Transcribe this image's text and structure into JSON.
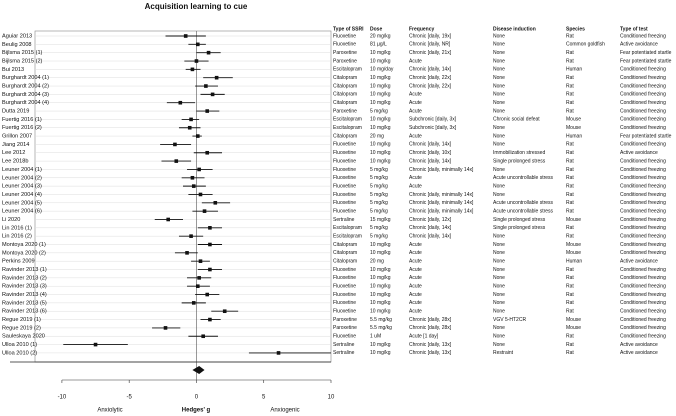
{
  "chart_data": {
    "type": "forest",
    "title": "Acquisition learning to cue",
    "x_label": "Hedges' g",
    "x_left_label": "Anxiolytic",
    "x_right_label": "Anxiogenic",
    "xlim": [
      -12,
      10
    ],
    "xticks": [
      -10,
      -5,
      0,
      5,
      10
    ],
    "color": "#111111",
    "categories": [
      "Aguiar 2013",
      "Beulig 2008",
      "Bijlsma 2015 (1)",
      "Bijlsma 2015 (2)",
      "Bui 2013",
      "Burghardt 2004 (1)",
      "Burghardt 2004 (2)",
      "Burghardt 2004 (3)",
      "Burghardt 2004 (4)",
      "Dutta 2019",
      "Fuertig 2016 (1)",
      "Fuertig 2016 (2)",
      "Grillon 2007",
      "Jiang 2014",
      "Lee 2012",
      "Lee 2018b",
      "Leuner 2004 (1)",
      "Leuner 2004 (2)",
      "Leuner 2004 (3)",
      "Leuner 2004 (4)",
      "Leuner 2004 (5)",
      "Leuner 2004 (6)",
      "Li 2020",
      "Lin 2016 (1)",
      "Lin 2016 (2)",
      "Montoya 2020 (1)",
      "Montoya 2020 (2)",
      "Perkins 2009",
      "Ravinder 2013 (1)",
      "Ravinder 2013 (2)",
      "Ravinder 2013 (3)",
      "Ravinder 2013 (4)",
      "Ravinder 2013 (5)",
      "Ravinder 2013 (6)",
      "Regue 2019 (1)",
      "Regue 2019 (2)",
      "Sauleskaya 2020",
      "Ulloa 2010 (1)",
      "Ulloa 2010 (2)"
    ],
    "values": [
      -0.8,
      0.1,
      0.9,
      0,
      -0.3,
      1.5,
      0.7,
      1.2,
      -1.2,
      0.8,
      -0.4,
      -0.5,
      0.1,
      -1.6,
      0.8,
      -1.5,
      0.2,
      -0.3,
      -0.2,
      0.3,
      1.4,
      0.6,
      -2.1,
      1.0,
      -0.4,
      1.0,
      -0.7,
      0.3,
      1.0,
      0.2,
      0.1,
      0.8,
      -0.2,
      2.1,
      1.0,
      -2.3,
      0.5,
      -7.5,
      6.1
    ],
    "ci_low": [
      -2.3,
      -0.6,
      0,
      -0.9,
      -0.8,
      0.5,
      -0.1,
      0.3,
      -2.2,
      0,
      -1.1,
      -1.3,
      -0.3,
      -2.7,
      -0.2,
      -2.6,
      -0.7,
      -1.1,
      -1,
      -0.6,
      0.4,
      -0.3,
      -3.1,
      0.1,
      -1.3,
      0.1,
      -1.6,
      -0.4,
      0.1,
      -0.7,
      -0.7,
      -0.1,
      -1.1,
      1.1,
      0.3,
      -3.3,
      -0.6,
      -9.9,
      3.9
    ],
    "ci_high": [
      0.7,
      0.7,
      1.8,
      0.9,
      0.3,
      2.7,
      1.6,
      2.1,
      -0.1,
      1.7,
      0.2,
      0.3,
      0.4,
      -0.4,
      1.9,
      -0.4,
      1.2,
      0.6,
      0.7,
      1.2,
      2.5,
      1.6,
      -1,
      1.9,
      0.5,
      1.9,
      0.1,
      1,
      1.9,
      1.1,
      1,
      1.7,
      0.7,
      3.1,
      1.8,
      -1.2,
      1.6,
      -5.1,
      10
    ],
    "summary": {
      "value": 0.2,
      "ci_low": -0.3,
      "ci_high": 0.6
    },
    "columns": [
      "Type of SSRI",
      "Dose",
      "Frequency",
      "Disease induction",
      "Species",
      "Type of test"
    ],
    "table": [
      [
        "Fluoxetine",
        "20 mg/kg",
        "Chronic [daily, 19x]",
        "None",
        "Rat",
        "Conditioned freezing"
      ],
      [
        "Fluoxetine",
        "81 µg/L",
        "Chronic [daily, NR]",
        "None",
        "Common goldfish",
        "Active avoidance"
      ],
      [
        "Paroxetine",
        "10 mg/kg",
        "Chronic [daily, 21x]",
        "None",
        "Rat",
        "Fear potentiated startle"
      ],
      [
        "Paroxetine",
        "10 mg/kg",
        "Acute",
        "None",
        "Rat",
        "Fear potentiated startle"
      ],
      [
        "Escitalopram",
        "10 mg/day",
        "Chronic [daily, 14x]",
        "None",
        "Human",
        "Conditioned freezing"
      ],
      [
        "Citalopram",
        "10 mg/kg",
        "Chronic [daily, 22x]",
        "None",
        "Rat",
        "Conditioned freezing"
      ],
      [
        "Citalopram",
        "10 mg/kg",
        "Chronic [daily, 22x]",
        "None",
        "Rat",
        "Conditioned freezing"
      ],
      [
        "Citalopram",
        "10 mg/kg",
        "Acute",
        "None",
        "Rat",
        "Conditioned freezing"
      ],
      [
        "Citalopram",
        "10 mg/kg",
        "Acute",
        "None",
        "Rat",
        "Conditioned freezing"
      ],
      [
        "Paroxetine",
        "5 mg/kg",
        "Acute",
        "None",
        "Rat",
        "Conditioned freezing"
      ],
      [
        "Escitalopram",
        "10 mg/kg",
        "Subchronic [daily, 3x]",
        "Chronic social defeat",
        "Mouse",
        "Conditioned freezing"
      ],
      [
        "Escitalopram",
        "10 mg/kg",
        "Subchronic [daily, 3x]",
        "None",
        "Mouse",
        "Conditioned freezing"
      ],
      [
        "Citalopram",
        "20 mg",
        "Acute",
        "None",
        "Human",
        "Fear potentiated startle"
      ],
      [
        "Fluoxetine",
        "10 mg/kg",
        "Chronic [daily, 14x]",
        "None",
        "Rat",
        "Conditioned freezing"
      ],
      [
        "Fluoxetine",
        "10 mg/kg",
        "Chronic [daily, 10x]",
        "Immobilization stressed",
        "Rat",
        "Active avoidance"
      ],
      [
        "Fluoxetine",
        "10 mg/kg",
        "Chronic [daily, 14x]",
        "Single prolonged stress",
        "Rat",
        "Conditioned freezing"
      ],
      [
        "Fluoxetine",
        "5 mg/kg",
        "Chronic [daily, minimally 14x]",
        "None",
        "Rat",
        "Conditioned freezing"
      ],
      [
        "Fluoxetine",
        "5 mg/kg",
        "Acute",
        "Acute uncontrollable stress",
        "Rat",
        "Conditioned freezing"
      ],
      [
        "Fluoxetine",
        "5 mg/kg",
        "Acute",
        "None",
        "Rat",
        "Conditioned freezing"
      ],
      [
        "Fluoxetine",
        "5 mg/kg",
        "Chronic [daily, minimally 14x]",
        "None",
        "Rat",
        "Conditioned freezing"
      ],
      [
        "Fluoxetine",
        "5 mg/kg",
        "Chronic [daily, minimally 14x]",
        "Acute uncontrollable stress",
        "Rat",
        "Conditioned freezing"
      ],
      [
        "Fluoxetine",
        "5 mg/kg",
        "Chronic [daily, minimally 14x]",
        "Acute uncontrollable stress",
        "Rat",
        "Conditioned freezing"
      ],
      [
        "Sertraline",
        "15 mg/kg",
        "Chronic [daily, 12x]",
        "Single prolonged stress",
        "Mouse",
        "Conditioned freezing"
      ],
      [
        "Escitalopram",
        "5 mg/kg",
        "Chronic [daily, 14x]",
        "Single prolonged stress",
        "Rat",
        "Conditioned freezing"
      ],
      [
        "Escitalopram",
        "5 mg/kg",
        "Chronic [daily, 14x]",
        "None",
        "Rat",
        "Conditioned freezing"
      ],
      [
        "Citalopram",
        "10 mg/kg",
        "Acute",
        "None",
        "Mouse",
        "Conditioned freezing"
      ],
      [
        "Citalopram",
        "10 mg/kg",
        "Acute",
        "None",
        "Mouse",
        "Conditioned freezing"
      ],
      [
        "Citalopram",
        "20 mg",
        "Acute",
        "None",
        "Human",
        "Active avoidance"
      ],
      [
        "Fluoxetine",
        "10 mg/kg",
        "Acute",
        "None",
        "Rat",
        "Conditioned freezing"
      ],
      [
        "Fluoxetine",
        "10 mg/kg",
        "Acute",
        "None",
        "Rat",
        "Conditioned freezing"
      ],
      [
        "Fluoxetine",
        "10 mg/kg",
        "Acute",
        "None",
        "Rat",
        "Conditioned freezing"
      ],
      [
        "Fluoxetine",
        "10 mg/kg",
        "Acute",
        "None",
        "Rat",
        "Conditioned freezing"
      ],
      [
        "Fluoxetine",
        "10 mg/kg",
        "Acute",
        "None",
        "Rat",
        "Conditioned freezing"
      ],
      [
        "Fluoxetine",
        "10 mg/kg",
        "Acute",
        "None",
        "Rat",
        "Conditioned freezing"
      ],
      [
        "Paroxetine",
        "5.5 mg/kg",
        "Chronic [daily, 28x]",
        "VGV 5-HT2CR",
        "Mouse",
        "Conditioned freezing"
      ],
      [
        "Paroxetine",
        "5.5 mg/kg",
        "Chronic [daily, 28x]",
        "None",
        "Mouse",
        "Conditioned freezing"
      ],
      [
        "Fluoxetine",
        "1 uM",
        "Acute [1 day]",
        "None",
        "Rat",
        "Conditioned freezing"
      ],
      [
        "Sertraline",
        "10 mg/kg",
        "Chronic [daily, 13x]",
        "None",
        "Rat",
        "Active avoidance"
      ],
      [
        "Sertraline",
        "10 mg/kg",
        "Chronic [daily, 13x]",
        "Restraint",
        "Rat",
        "Active avoidance"
      ]
    ]
  }
}
